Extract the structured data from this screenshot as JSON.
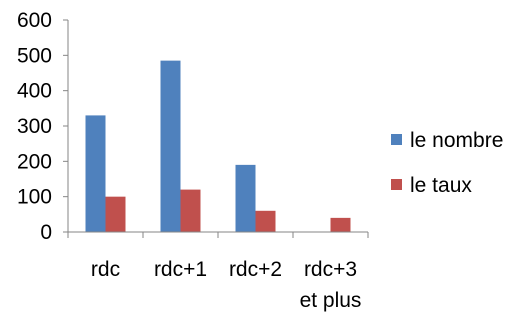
{
  "chart_data": {
    "type": "bar",
    "categories": [
      "rdc",
      "rdc+1",
      "rdc+2",
      "rdc+3"
    ],
    "category_sublabels": [
      "",
      "",
      "",
      "et plus"
    ],
    "series": [
      {
        "name": "le nombre",
        "color": "#4f81bd",
        "values": [
          330,
          485,
          190,
          0
        ]
      },
      {
        "name": "le taux",
        "color": "#c0504d",
        "values": [
          100,
          120,
          60,
          40
        ]
      }
    ],
    "yticks": [
      "0",
      "100",
      "200",
      "300",
      "400",
      "500",
      "600"
    ],
    "ylim": [
      0,
      600
    ],
    "legend_position": "right",
    "grid": false
  }
}
